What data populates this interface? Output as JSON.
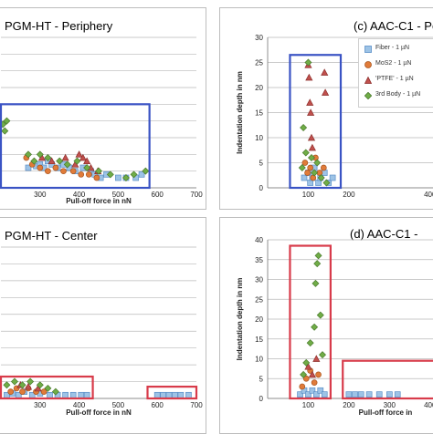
{
  "panels": {
    "a": {
      "title": "PGM-HT - Periphery"
    },
    "b": {
      "title": "PGM-HT - Center"
    },
    "c": {
      "title": "(c) AAC-C1 - Pe"
    },
    "d": {
      "title": "(d) AAC-C1 -"
    }
  },
  "legend": {
    "items": [
      {
        "label": "Fiber - 1 µN",
        "shape": "square",
        "color": "#9dc3e6"
      },
      {
        "label": "MoS2 - 1 µN",
        "shape": "circle",
        "color": "#e07b39"
      },
      {
        "label": "'PTFE' - 1 µN",
        "shape": "triangle",
        "color": "#c0504d"
      },
      {
        "label": "3rd Body - 1 µN",
        "shape": "diamond",
        "color": "#70ad47"
      }
    ]
  },
  "colors": {
    "fiber": "#9dc3e6",
    "mos2": "#e07b39",
    "ptfe": "#c0504d",
    "third_body": "#70ad47",
    "box_blue": "#3a53c4",
    "box_red": "#d83b4a"
  },
  "chart_data": [
    {
      "id": "a",
      "type": "scatter",
      "title": "PGM-HT - Periphery",
      "xlabel": "Pull-off force in nN",
      "ylabel": "",
      "xlim": [
        200,
        700
      ],
      "ylim": [
        0,
        45
      ],
      "xticks": [
        "300",
        "400",
        "500",
        "600",
        "700"
      ],
      "grid": true,
      "box": {
        "x": [
          200,
          580
        ],
        "y": [
          0,
          25
        ],
        "color": "blue"
      },
      "series": [
        {
          "name": "Fiber - 1 µN",
          "points": [
            [
              270,
              6
            ],
            [
              290,
              6.5
            ],
            [
              300,
              7
            ],
            [
              310,
              6
            ],
            [
              320,
              8
            ],
            [
              330,
              7
            ],
            [
              345,
              6
            ],
            [
              360,
              7
            ],
            [
              375,
              6
            ],
            [
              390,
              5
            ],
            [
              410,
              6
            ],
            [
              430,
              5
            ],
            [
              440,
              4
            ],
            [
              455,
              3
            ],
            [
              470,
              4
            ],
            [
              500,
              3
            ],
            [
              520,
              3
            ],
            [
              545,
              3
            ],
            [
              560,
              4
            ]
          ]
        },
        {
          "name": "MoS2 - 1 µN",
          "points": [
            [
              265,
              9
            ],
            [
              280,
              7
            ],
            [
              300,
              6
            ],
            [
              320,
              5
            ],
            [
              340,
              6
            ],
            [
              360,
              5
            ],
            [
              385,
              5
            ],
            [
              405,
              4
            ],
            [
              425,
              4
            ],
            [
              445,
              3
            ]
          ]
        },
        {
          "name": "'PTFE' - 1 µN",
          "points": [
            [
              305,
              9
            ],
            [
              330,
              8
            ],
            [
              365,
              9
            ],
            [
              390,
              7
            ],
            [
              400,
              10
            ],
            [
              410,
              9
            ],
            [
              420,
              8
            ],
            [
              430,
              6
            ],
            [
              448,
              5
            ]
          ]
        },
        {
          "name": "3rd Body - 1 µN",
          "points": [
            [
              205,
              19
            ],
            [
              210,
              17
            ],
            [
              215,
              20
            ],
            [
              270,
              10
            ],
            [
              285,
              8
            ],
            [
              300,
              10
            ],
            [
              320,
              9
            ],
            [
              350,
              8
            ],
            [
              370,
              7
            ],
            [
              395,
              8
            ],
            [
              420,
              6
            ],
            [
              450,
              5
            ],
            [
              480,
              4
            ],
            [
              520,
              3
            ],
            [
              540,
              4
            ],
            [
              570,
              5
            ]
          ]
        }
      ]
    },
    {
      "id": "c",
      "type": "scatter",
      "title": "(c) AAC-C1 - Pe",
      "xlabel": "",
      "ylabel": "Indentation depth in nm",
      "xlim": [
        0,
        450
      ],
      "ylim": [
        0,
        30
      ],
      "xticks": [
        "100",
        "200",
        "400"
      ],
      "yticks": [
        "0",
        "5",
        "10",
        "15",
        "20",
        "25",
        "30"
      ],
      "grid": true,
      "box": {
        "x": [
          55,
          180
        ],
        "y": [
          0,
          26.5
        ],
        "color": "blue"
      },
      "series": [
        {
          "name": "Fiber - 1 µN",
          "points": [
            [
              90,
              2
            ],
            [
              100,
              3
            ],
            [
              105,
              1
            ],
            [
              110,
              2
            ],
            [
              115,
              4
            ],
            [
              125,
              1
            ],
            [
              130,
              2
            ],
            [
              140,
              3
            ],
            [
              150,
              1
            ],
            [
              160,
              2
            ]
          ]
        },
        {
          "name": "MoS2 - 1 µN",
          "points": [
            [
              92,
              5
            ],
            [
              98,
              3
            ],
            [
              105,
              4
            ],
            [
              112,
              2
            ],
            [
              118,
              6
            ],
            [
              128,
              3
            ],
            [
              138,
              4
            ]
          ]
        },
        {
          "name": "'PTFE' - 1 µN",
          "points": [
            [
              100,
              24.5
            ],
            [
              102,
              22
            ],
            [
              104,
              17
            ],
            [
              106,
              15
            ],
            [
              108,
              10
            ],
            [
              110,
              8
            ],
            [
              140,
              23
            ],
            [
              142,
              19
            ]
          ]
        },
        {
          "name": "3rd Body - 1 µN",
          "points": [
            [
              85,
              4
            ],
            [
              88,
              12
            ],
            [
              94,
              7
            ],
            [
              100,
              25
            ],
            [
              108,
              6
            ],
            [
              115,
              3
            ],
            [
              122,
              5
            ],
            [
              132,
              2
            ],
            [
              145,
              1
            ]
          ]
        }
      ]
    },
    {
      "id": "b",
      "type": "scatter",
      "title": "PGM-HT - Center",
      "xlabel": "Pull-off force in nN",
      "ylabel": "",
      "xlim": [
        200,
        700
      ],
      "ylim": [
        0,
        45
      ],
      "xticks": [
        "300",
        "400",
        "500",
        "600",
        "700"
      ],
      "grid": true,
      "boxes": [
        {
          "x": [
            200,
            435
          ],
          "y": [
            0,
            6.5
          ],
          "color": "red"
        },
        {
          "x": [
            575,
            700
          ],
          "y": [
            0,
            3.5
          ],
          "color": "red"
        }
      ],
      "series": [
        {
          "name": "Fiber - 1 µN",
          "points": [
            [
              215,
              1
            ],
            [
              230,
              1.5
            ],
            [
              245,
              1
            ],
            [
              260,
              2
            ],
            [
              280,
              1
            ],
            [
              300,
              1.5
            ],
            [
              325,
              1
            ],
            [
              345,
              1
            ],
            [
              365,
              1
            ],
            [
              385,
              1
            ],
            [
              405,
              1
            ],
            [
              420,
              1
            ],
            [
              600,
              1
            ],
            [
              615,
              1
            ],
            [
              630,
              1
            ],
            [
              645,
              1
            ],
            [
              660,
              1
            ],
            [
              680,
              1
            ]
          ]
        },
        {
          "name": "MoS2 - 1 µN",
          "points": [
            [
              225,
              2
            ],
            [
              240,
              3
            ],
            [
              255,
              2
            ],
            [
              270,
              3
            ],
            [
              290,
              2
            ],
            [
              310,
              2
            ]
          ]
        },
        {
          "name": "'PTFE' - 1 µN",
          "points": [
            [
              250,
              4
            ],
            [
              270,
              3.5
            ],
            [
              295,
              3
            ]
          ]
        },
        {
          "name": "3rd Body - 1 µN",
          "points": [
            [
              215,
              4
            ],
            [
              235,
              5
            ],
            [
              255,
              4
            ],
            [
              275,
              5
            ],
            [
              300,
              4
            ],
            [
              320,
              3
            ],
            [
              340,
              2
            ]
          ]
        }
      ]
    },
    {
      "id": "d",
      "type": "scatter",
      "title": "(d) AAC-C1 -",
      "xlabel": "Pull-off force in",
      "ylabel": "Indentation depth in nm",
      "xlim": [
        0,
        450
      ],
      "ylim": [
        0,
        40
      ],
      "xticks": [
        "100",
        "200",
        "300",
        "400"
      ],
      "yticks": [
        "0",
        "5",
        "10",
        "15",
        "20",
        "25",
        "30",
        "35",
        "40"
      ],
      "grid": true,
      "boxes": [
        {
          "x": [
            55,
            155
          ],
          "y": [
            0,
            38.5
          ],
          "color": "red"
        },
        {
          "x": [
            185,
            450
          ],
          "y": [
            0,
            9.5
          ],
          "color": "red"
        }
      ],
      "series": [
        {
          "name": "Fiber - 1 µN",
          "points": [
            [
              80,
              1
            ],
            [
              90,
              2
            ],
            [
              100,
              1
            ],
            [
              110,
              2
            ],
            [
              120,
              1
            ],
            [
              130,
              2
            ],
            [
              140,
              1
            ],
            [
              200,
              1
            ],
            [
              215,
              1
            ],
            [
              230,
              1
            ],
            [
              250,
              1
            ],
            [
              275,
              1
            ],
            [
              300,
              1
            ],
            [
              320,
              1
            ]
          ]
        },
        {
          "name": "MoS2 - 1 µN",
          "points": [
            [
              85,
              3
            ],
            [
              95,
              5
            ],
            [
              105,
              7
            ],
            [
              115,
              4
            ],
            [
              125,
              6
            ]
          ]
        },
        {
          "name": "'PTFE' - 1 µN",
          "points": [
            [
              100,
              8
            ],
            [
              110,
              6
            ],
            [
              120,
              10
            ]
          ]
        },
        {
          "name": "3rd Body - 1 µN",
          "points": [
            [
              88,
              6
            ],
            [
              95,
              9
            ],
            [
              105,
              14
            ],
            [
              115,
              18
            ],
            [
              118,
              29
            ],
            [
              122,
              34
            ],
            [
              125,
              36
            ],
            [
              130,
              21
            ],
            [
              135,
              11
            ]
          ]
        }
      ]
    }
  ]
}
